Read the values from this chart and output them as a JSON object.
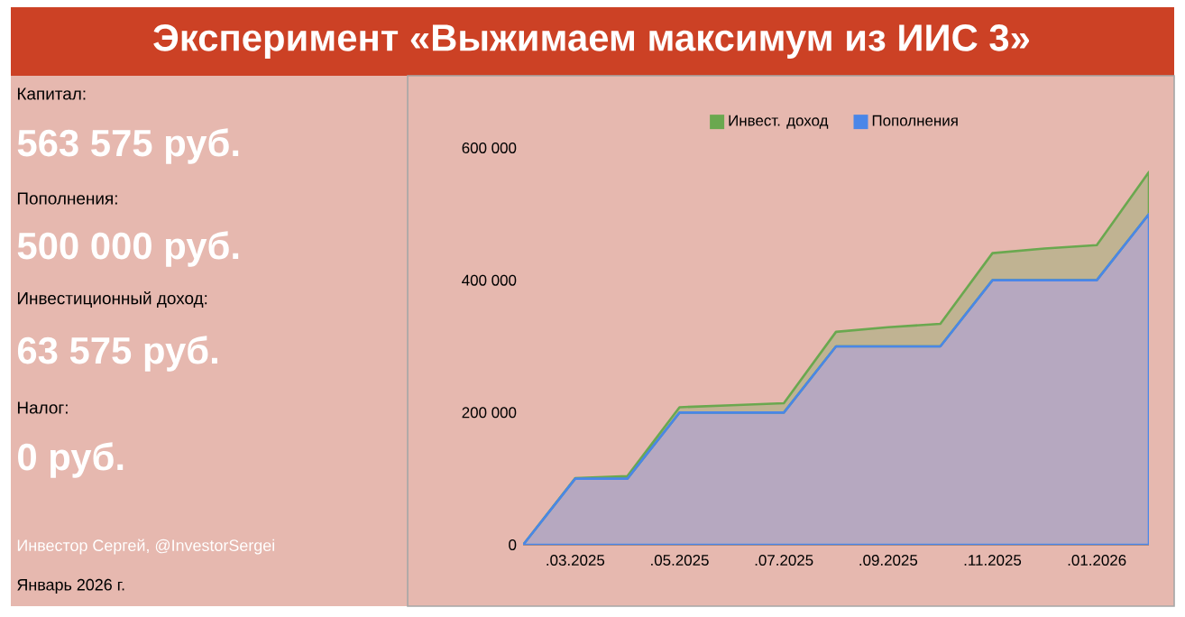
{
  "chart_data": [
    {
      "type": "other",
      "title": "Эксперимент «Выжимаем максимум из ИИС 3»",
      "annotations": [
        "Капитал:",
        "563 575 руб.",
        "Пополнения:",
        "500 000 руб.",
        "Инвестиционный доход:",
        "63 575 руб.",
        "Налог:",
        "0 руб.",
        "Инвестор Сергей, @InvestorSergei",
        "Январь 2026 г."
      ]
    },
    {
      "type": "area",
      "stacked": true,
      "legend": "top",
      "categories": [
        null,
        ".03.2025",
        null,
        ".05.2025",
        null,
        ".07.2025",
        null,
        ".09.2025",
        null,
        ".11.2025",
        null,
        ".01.2026",
        null
      ],
      "series": [
        {
          "name": "Пополнения",
          "color": "#4a86e8",
          "values": [
            0,
            100000,
            100000,
            200000,
            200000,
            200000,
            300000,
            300000,
            300000,
            400000,
            400000,
            400000,
            500000
          ]
        },
        {
          "name": "Инвест. доход",
          "color": "#6aa84f",
          "values": [
            0,
            1000,
            4000,
            8000,
            11000,
            14000,
            22000,
            29000,
            34000,
            41000,
            48000,
            53000,
            63575
          ]
        }
      ],
      "ylim": [
        0,
        600000
      ],
      "yticks": [
        0,
        {
          "value": 200000,
          "label": "200 000"
        },
        {
          "value": 400000,
          "label": "400 000"
        },
        {
          "value": 600000,
          "label": "600 000"
        }
      ]
    }
  ]
}
